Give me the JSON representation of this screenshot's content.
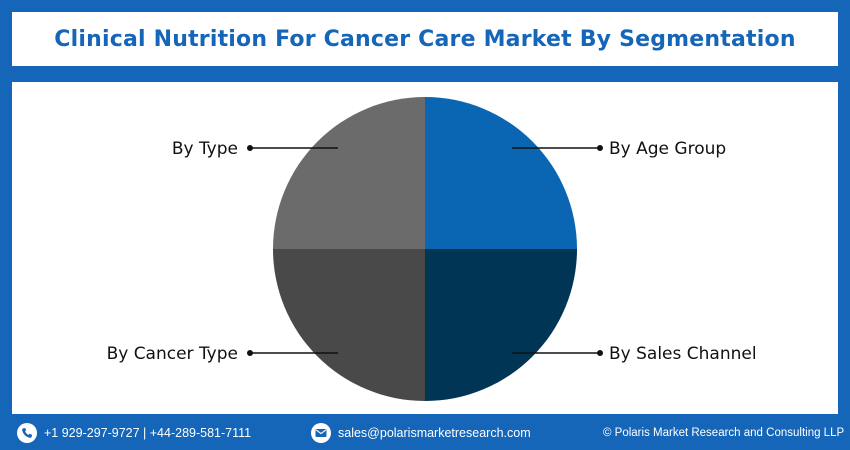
{
  "title": "Clinical Nutrition For Cancer Care Market By Segmentation",
  "colors": {
    "background": "#1565b8",
    "title_text": "#1565b8",
    "by_age_group": "#0a66b3",
    "by_sales_channel": "#003555",
    "by_cancer_type": "#494949",
    "by_type": "#6b6b6b"
  },
  "chart_data": {
    "type": "pie",
    "title": "Clinical Nutrition For Cancer Care Market By Segmentation",
    "slices": [
      {
        "label": "By Age Group",
        "value": 25,
        "color": "#0a66b3",
        "placement": "top-right"
      },
      {
        "label": "By Sales Channel",
        "value": 25,
        "color": "#003555",
        "placement": "bottom-right"
      },
      {
        "label": "By Cancer Type",
        "value": 25,
        "color": "#494949",
        "placement": "bottom-left"
      },
      {
        "label": "By Type",
        "value": 25,
        "color": "#6b6b6b",
        "placement": "top-left"
      }
    ],
    "legend": "none"
  },
  "footer": {
    "phone_icon": "phone-icon",
    "phone": "+1 929-297-9727 | +44-289-581-7111",
    "email_icon": "mail-icon",
    "email": "sales@polarismarketresearch.com",
    "copyright": "© Polaris Market Research and Consulting LLP"
  }
}
